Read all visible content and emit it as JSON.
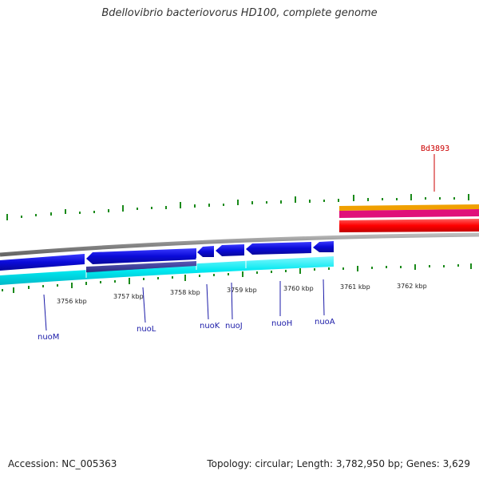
{
  "title": "Bdellovibrio bacteriovorus HD100, complete genome",
  "footer": {
    "accession": "Accession: NC_005363",
    "summary": "Topology: circular; Length: 3,782,950 bp; Genes: 3,629"
  },
  "colors": {
    "backbone": "#888888",
    "gene_forward": "#1010e0",
    "gene_reverse": "#1010e0",
    "cds_band": "#00e8f0",
    "gc_ticks": "#1a8a1a",
    "orange_band": "#f0a000",
    "pink_band": "#e0107a",
    "red_band": "#ff0000",
    "label_blue": "#1a1aa8",
    "label_red": "#cc0000"
  },
  "scale_labels": [
    "3756 kbp",
    "3757 kbp",
    "3758 kbp",
    "3759 kbp",
    "3760 kbp",
    "3761 kbp",
    "3762 kbp"
  ],
  "genes": [
    {
      "name": "nuoM"
    },
    {
      "name": "nuoL"
    },
    {
      "name": "nuoK"
    },
    {
      "name": "nuoJ"
    },
    {
      "name": "nuoH"
    },
    {
      "name": "nuoA"
    }
  ],
  "highlight_gene": {
    "name": "Bd3893"
  }
}
